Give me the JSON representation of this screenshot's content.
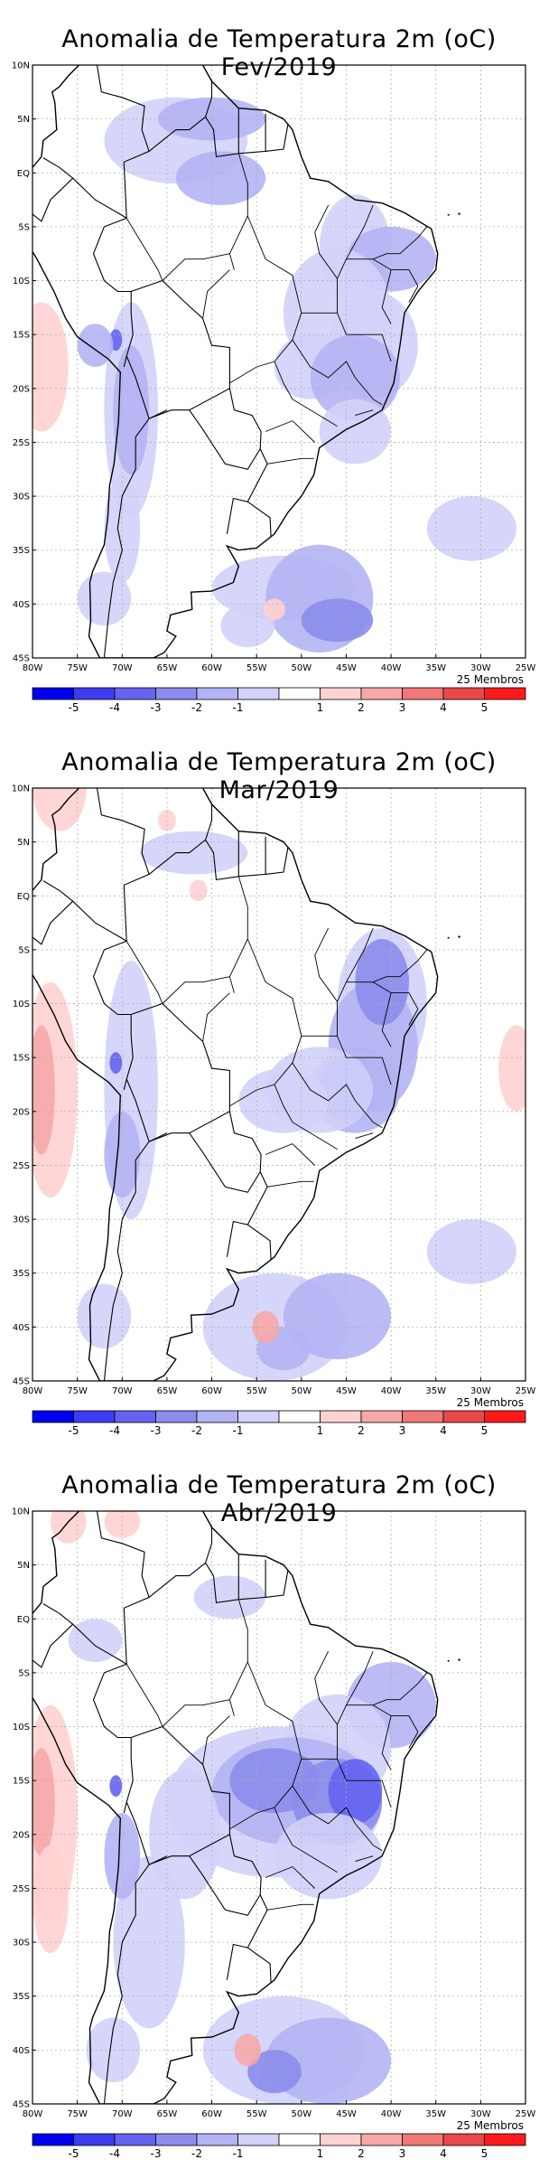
{
  "panels": [
    {
      "title": "Anomalia de Temperatura 2m (oC) Fev/2019",
      "members_label": "25 Membros"
    },
    {
      "title": "Anomalia de Temperatura 2m (oC) Mar/2019",
      "members_label": "25 Membros"
    },
    {
      "title": "Anomalia de Temperatura 2m (oC) Abr/2019",
      "members_label": "25 Membros"
    }
  ],
  "axes": {
    "lat_labels": [
      "10N",
      "5N",
      "EQ",
      "5S",
      "10S",
      "15S",
      "20S",
      "25S",
      "30S",
      "35S",
      "40S",
      "45S"
    ],
    "lon_labels": [
      "80W",
      "75W",
      "70W",
      "65W",
      "60W",
      "55W",
      "50W",
      "45W",
      "40W",
      "35W",
      "30W",
      "25W"
    ]
  },
  "colorbar": {
    "labels": [
      "-5",
      "-4",
      "-3",
      "-2",
      "-1",
      "1",
      "2",
      "3",
      "4",
      "5"
    ],
    "colors": [
      "#0000ee",
      "#3c3cf0",
      "#6464f0",
      "#8c8cec",
      "#b4b4f4",
      "#d2d2fa",
      "#ffffff",
      "#ffd2d2",
      "#f7a8a8",
      "#f07878",
      "#e84848",
      "#ff1a1a"
    ]
  }
}
